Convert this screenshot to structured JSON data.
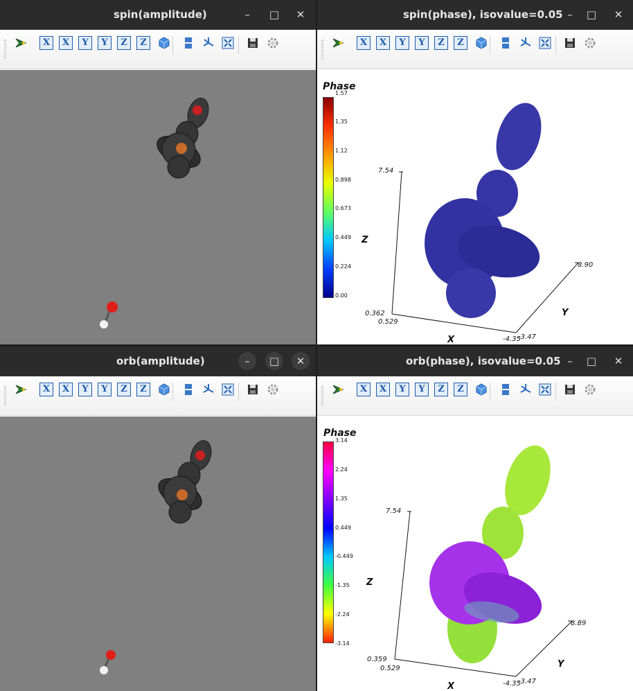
{
  "windows": [
    {
      "title": "spin(amplitude)",
      "type": "amplitude",
      "controls": {
        "minimize": "–",
        "maximize": "□",
        "close": "✕"
      }
    },
    {
      "title": "spin(phase), isovalue=0.05",
      "type": "phase",
      "controls": {
        "minimize": "–",
        "maximize": "□",
        "close": "✕"
      },
      "legend_title": "Phase",
      "colorbar_ticks": [
        "1.57",
        "1.35",
        "1.12",
        "0.898",
        "0.673",
        "0.449",
        "0.224",
        "0.00"
      ],
      "colorbar_colors": [
        "#8b0000",
        "#ff3000",
        "#ff9900",
        "#e8ff00",
        "#60ff60",
        "#00c8ff",
        "#0040ff",
        "#00008b"
      ],
      "axes": {
        "z_label": "Z",
        "y_label": "Y",
        "x_label": "X",
        "z_max": "7.54",
        "z_min": "0.362",
        "x_min": "0.529",
        "x_max": "-4.35",
        "y_min": "-3.47",
        "y_max": "8.90"
      },
      "surface_color": "#3535a5"
    },
    {
      "title": "orb(amplitude)",
      "type": "amplitude",
      "controls": {
        "minimize": "–",
        "maximize": "□",
        "close": "✕"
      }
    },
    {
      "title": "orb(phase), isovalue=0.05",
      "type": "phase",
      "controls": {
        "minimize": "–",
        "maximize": "□",
        "close": "✕"
      },
      "legend_title": "Phase",
      "colorbar_ticks": [
        "3.14",
        "2.24",
        "1.35",
        "0.449",
        "-0.449",
        "-1.35",
        "-2.24",
        "-3.14"
      ],
      "colorbar_colors": [
        "#ff0040",
        "#ff00ff",
        "#8000ff",
        "#0000ff",
        "#00c8ff",
        "#40ff40",
        "#ffff00",
        "#ff2000"
      ],
      "axes": {
        "z_label": "Z",
        "y_label": "Y",
        "x_label": "X",
        "z_max": "7.54",
        "z_min": "0.359",
        "x_min": "0.529",
        "x_max": "-4.35",
        "y_min": "-3.47",
        "y_max": "8.89"
      },
      "surface_color": "#9fe33a"
    }
  ],
  "toolbar": {
    "buttons": [
      {
        "name": "reset-view-button",
        "icon": "paraview-logo-icon"
      },
      {
        "name": "view-plus-x-button",
        "label": "X"
      },
      {
        "name": "view-minus-x-button",
        "label": "X"
      },
      {
        "name": "view-plus-y-button",
        "label": "Y"
      },
      {
        "name": "view-minus-y-button",
        "label": "Y"
      },
      {
        "name": "view-plus-z-button",
        "label": "Z"
      },
      {
        "name": "view-minus-z-button",
        "label": "Z"
      },
      {
        "name": "isometric-view-button",
        "icon": "cube-icon"
      },
      {
        "name": "layout-button",
        "icon": "layout-icon"
      },
      {
        "name": "interaction-button",
        "icon": "axes-icon"
      },
      {
        "name": "fullscreen-button",
        "icon": "fullscreen-icon"
      },
      {
        "name": "save-button",
        "icon": "save-icon"
      },
      {
        "name": "settings-button",
        "icon": "gear-icon"
      }
    ]
  },
  "colors": {
    "titlebar": "#2b2b2b",
    "viewport_gray": "#808080",
    "atom_oxygen": "#e0201a",
    "atom_hydrogen": "#f2f2f2",
    "atom_copper": "#c86a2a"
  }
}
